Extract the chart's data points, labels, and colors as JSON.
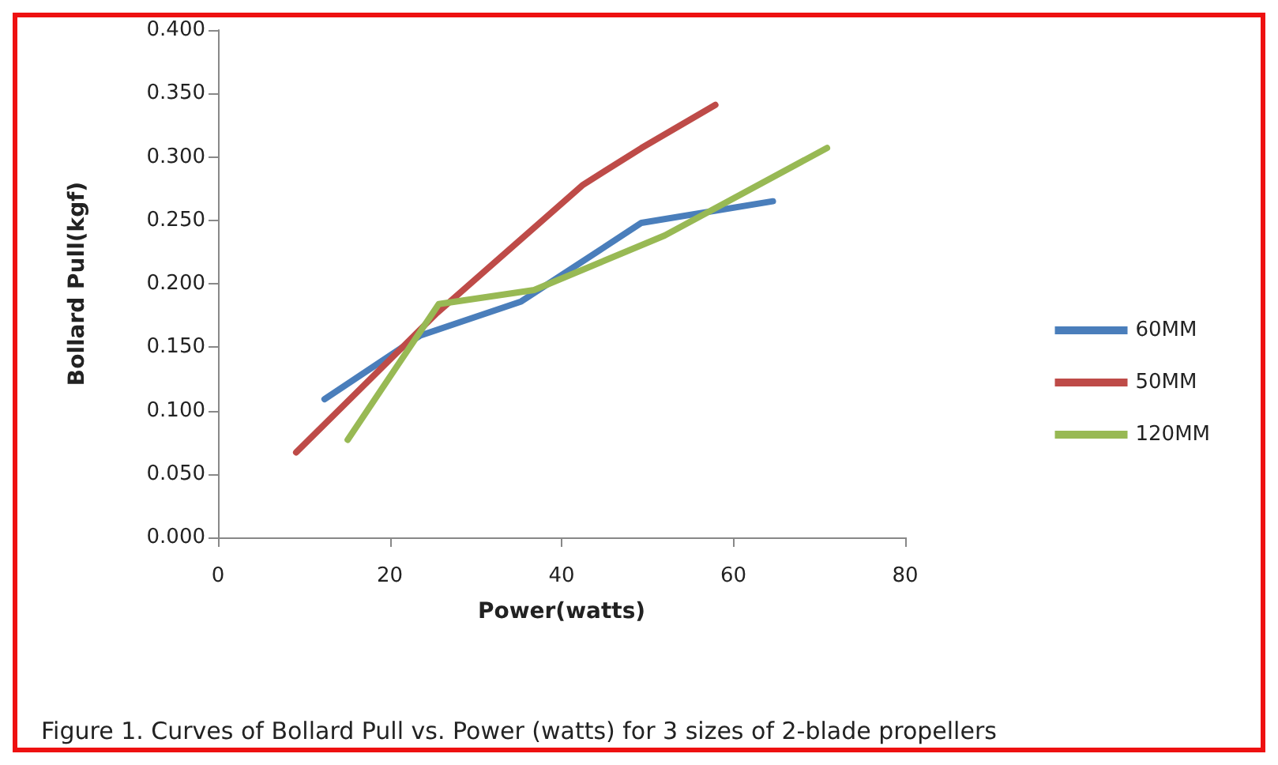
{
  "chart_data": {
    "type": "line",
    "xlabel": "Power(watts)",
    "ylabel": "Bollard Pull(kgf)",
    "annotations": [
      "Figure 1. Curves of Bollard Pull vs. Power (watts) for 3 sizes of 2-blade propellers"
    ],
    "series": [
      {
        "name": "60MM",
        "color": "#4a7ebb",
        "x": [
          12.4,
          23.5,
          35.3,
          49.3,
          64.6
        ],
        "values": [
          0.109,
          0.159,
          0.186,
          0.248,
          0.265
        ]
      },
      {
        "name": "50MM",
        "color": "#be4b48",
        "x": [
          9.1,
          25.5,
          42.5,
          49.3,
          57.9
        ],
        "values": [
          0.067,
          0.177,
          0.278,
          0.307,
          0.341
        ]
      },
      {
        "name": "120MM",
        "color": "#98b954",
        "x": [
          15.1,
          25.7,
          36.8,
          52,
          70.9
        ],
        "values": [
          0.077,
          0.184,
          0.195,
          0.238,
          0.307
        ]
      }
    ],
    "xlim": [
      0,
      80
    ],
    "xticks": [
      0,
      20,
      40,
      60,
      80
    ],
    "ylim": [
      0,
      0.4
    ],
    "yticks": [
      {
        "value": 0,
        "label": "0.000"
      },
      {
        "value": 0.05,
        "label": "0.050"
      },
      {
        "value": 0.1,
        "label": "0.100"
      },
      {
        "value": 0.15,
        "label": "0.150"
      },
      {
        "value": 0.2,
        "label": "0.200"
      },
      {
        "value": 0.25,
        "label": "0.250"
      },
      {
        "value": 0.3,
        "label": "0.300"
      },
      {
        "value": 0.35,
        "label": "0.350"
      },
      {
        "value": 0.4,
        "label": "0.400"
      }
    ],
    "grid": false,
    "legend": "right",
    "marker": "none",
    "line_style": "solid"
  }
}
